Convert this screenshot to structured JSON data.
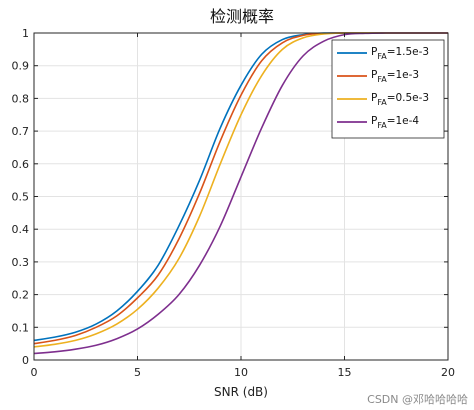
{
  "chart_data": {
    "type": "line",
    "title": "检测概率",
    "xlabel": "SNR (dB)",
    "ylabel": "",
    "xlim": [
      0,
      20
    ],
    "ylim": [
      0,
      1
    ],
    "xticks": [
      0,
      5,
      10,
      15,
      20
    ],
    "yticks": [
      0,
      0.1,
      0.2,
      0.3,
      0.4,
      0.5,
      0.6,
      0.7,
      0.8,
      0.9,
      1
    ],
    "grid": true,
    "legend_position": "top-right",
    "x": [
      0,
      1,
      2,
      3,
      4,
      5,
      6,
      7,
      8,
      9,
      10,
      11,
      12,
      13,
      14,
      15,
      16,
      17,
      18,
      19,
      20
    ],
    "series": [
      {
        "label_main": "P",
        "label_sub": "FA",
        "label_value": "=1.5e-3",
        "color": "#0072BD",
        "values": [
          0.06,
          0.07,
          0.085,
          0.11,
          0.15,
          0.21,
          0.29,
          0.41,
          0.55,
          0.71,
          0.84,
          0.935,
          0.98,
          0.995,
          1,
          1,
          1,
          1,
          1,
          1,
          1
        ]
      },
      {
        "label_main": "P",
        "label_sub": "FA",
        "label_value": "=1e-3",
        "color": "#D95319",
        "values": [
          0.05,
          0.06,
          0.075,
          0.1,
          0.135,
          0.19,
          0.26,
          0.37,
          0.51,
          0.67,
          0.81,
          0.915,
          0.97,
          0.993,
          0.999,
          1,
          1,
          1,
          1,
          1,
          1
        ]
      },
      {
        "label_main": "P",
        "label_sub": "FA",
        "label_value": "=0.5e-3",
        "color": "#EDB120",
        "values": [
          0.04,
          0.048,
          0.06,
          0.08,
          0.11,
          0.155,
          0.22,
          0.31,
          0.44,
          0.6,
          0.75,
          0.87,
          0.95,
          0.985,
          0.997,
          1,
          1,
          1,
          1,
          1,
          1
        ]
      },
      {
        "label_main": "P",
        "label_sub": "FA",
        "label_value": "=1e-4",
        "color": "#7E2F8E",
        "values": [
          0.02,
          0.025,
          0.033,
          0.045,
          0.065,
          0.095,
          0.14,
          0.2,
          0.29,
          0.41,
          0.56,
          0.71,
          0.84,
          0.93,
          0.975,
          0.995,
          0.999,
          1,
          1,
          1,
          1
        ]
      }
    ]
  },
  "watermark": "CSDN @邓哈哈哈哈"
}
